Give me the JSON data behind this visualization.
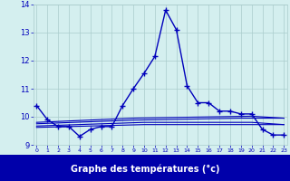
{
  "title": "Graphe des températures (°c)",
  "bg_color": "#d4efef",
  "line_color": "#0000bb",
  "grid_color": "#aacccc",
  "hours": [
    0,
    1,
    2,
    3,
    4,
    5,
    6,
    7,
    8,
    9,
    10,
    11,
    12,
    13,
    14,
    15,
    16,
    17,
    18,
    19,
    20,
    21,
    22,
    23
  ],
  "temps": [
    10.4,
    9.9,
    9.65,
    9.65,
    9.3,
    9.55,
    9.65,
    9.65,
    10.4,
    11.0,
    11.55,
    12.15,
    13.8,
    13.1,
    11.1,
    10.5,
    10.5,
    10.2,
    10.2,
    10.1,
    10.1,
    9.55,
    9.35,
    9.35
  ],
  "ref_line1": {
    "x": [
      0,
      10,
      19,
      23
    ],
    "y": [
      9.62,
      9.72,
      9.72,
      9.72
    ]
  },
  "ref_line2": {
    "x": [
      0,
      10,
      20,
      23
    ],
    "y": [
      9.67,
      9.8,
      9.8,
      9.72
    ]
  },
  "ref_line3": {
    "x": [
      0,
      9,
      19,
      23
    ],
    "y": [
      9.75,
      9.88,
      9.95,
      9.95
    ]
  },
  "ref_line4": {
    "x": [
      0,
      9,
      20,
      23
    ],
    "y": [
      9.8,
      9.95,
      10.02,
      9.95
    ]
  },
  "ylim": [
    9.0,
    14.0
  ],
  "xlim": [
    -0.3,
    23.3
  ],
  "yticks": [
    9,
    10,
    11,
    12,
    13,
    14
  ],
  "xticks": [
    0,
    1,
    2,
    3,
    4,
    5,
    6,
    7,
    8,
    9,
    10,
    11,
    12,
    13,
    14,
    15,
    16,
    17,
    18,
    19,
    20,
    21,
    22,
    23
  ],
  "label_bar_color": "#0000aa",
  "label_text_color": "#ffffff",
  "tick_text_color": "#0000bb"
}
